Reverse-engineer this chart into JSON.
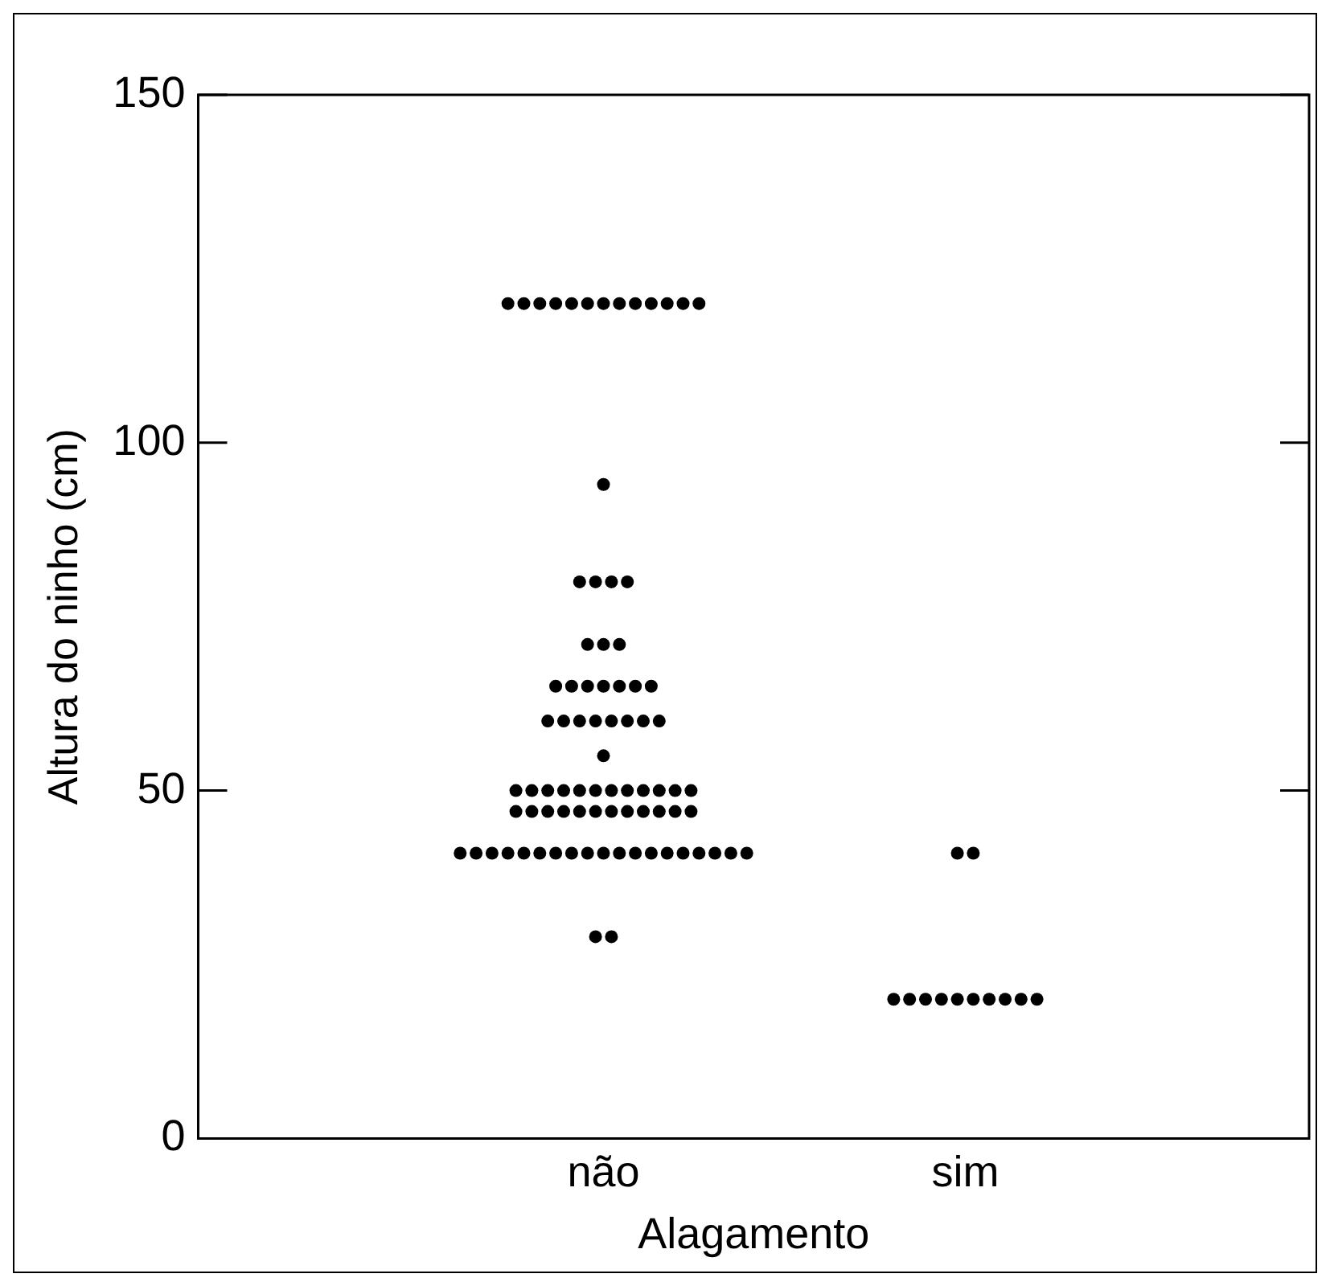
{
  "chart_data": {
    "type": "scatter",
    "xlabel": "Alagamento",
    "ylabel": "Altura do ninho (cm)",
    "categories": [
      "não",
      "sim"
    ],
    "ylim": [
      0,
      150
    ],
    "yticks": [
      0,
      50,
      100,
      150
    ],
    "grid": false,
    "legend": false,
    "marker": "circle",
    "series": [
      {
        "color": "#000000",
        "x": [
          "não",
          "não",
          "não",
          "não",
          "não",
          "não",
          "não",
          "não",
          "não",
          "não",
          "não",
          "não",
          "não",
          "não",
          "não",
          "não",
          "não",
          "não",
          "não",
          "não",
          "não",
          "não",
          "não",
          "não",
          "não",
          "não",
          "não",
          "não",
          "não",
          "não",
          "não",
          "não",
          "não",
          "não",
          "não",
          "não",
          "não",
          "não",
          "não",
          "não",
          "não",
          "não",
          "não",
          "não",
          "não",
          "não",
          "não",
          "não",
          "não",
          "não",
          "não",
          "não",
          "não",
          "não",
          "não",
          "não",
          "não",
          "não",
          "não",
          "não",
          "não",
          "não",
          "não",
          "não",
          "não",
          "não",
          "não",
          "não",
          "não",
          "não",
          "não",
          "não",
          "não",
          "não",
          "não",
          "não",
          "não",
          "não",
          "não",
          "não",
          "não",
          "não",
          "sim",
          "sim",
          "sim",
          "sim",
          "sim",
          "sim",
          "sim",
          "sim",
          "sim",
          "sim",
          "sim",
          "sim"
        ],
        "values": [
          120,
          120,
          120,
          120,
          120,
          120,
          120,
          120,
          120,
          120,
          120,
          120,
          120,
          94,
          80,
          80,
          80,
          80,
          71,
          71,
          71,
          65,
          65,
          65,
          65,
          65,
          65,
          65,
          60,
          60,
          60,
          60,
          60,
          60,
          60,
          60,
          55,
          50,
          50,
          50,
          50,
          50,
          50,
          50,
          50,
          50,
          50,
          50,
          50,
          47,
          47,
          47,
          47,
          47,
          47,
          47,
          47,
          47,
          47,
          47,
          47,
          41,
          41,
          41,
          41,
          41,
          41,
          41,
          41,
          41,
          41,
          41,
          41,
          41,
          41,
          41,
          41,
          41,
          41,
          41,
          29,
          29,
          41,
          41,
          20,
          20,
          20,
          20,
          20,
          20,
          20,
          20,
          20,
          20
        ]
      }
    ]
  }
}
